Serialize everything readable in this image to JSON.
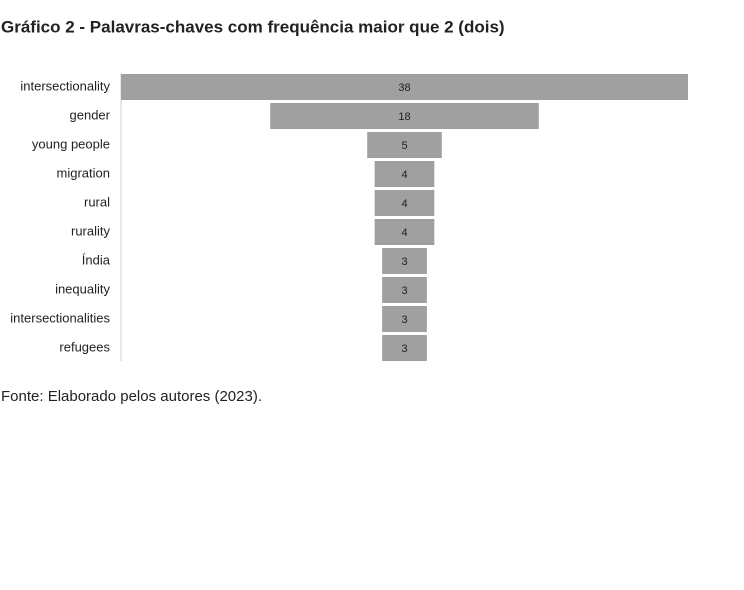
{
  "chart_data": {
    "type": "funnel",
    "title": "Gráfico 2 - Palavras-chaves com frequência maior que 2 (dois)",
    "categories": [
      "intersectionality",
      "gender",
      "young people",
      "migration",
      "rural",
      "rurality",
      "Índia",
      "inequality",
      "intersectionalities",
      "refugees"
    ],
    "values": [
      38,
      18,
      5,
      4,
      4,
      4,
      3,
      3,
      3,
      3
    ],
    "color": "#a0a0a0",
    "source": "Fonte: Elaborado pelos autores (2023)."
  }
}
